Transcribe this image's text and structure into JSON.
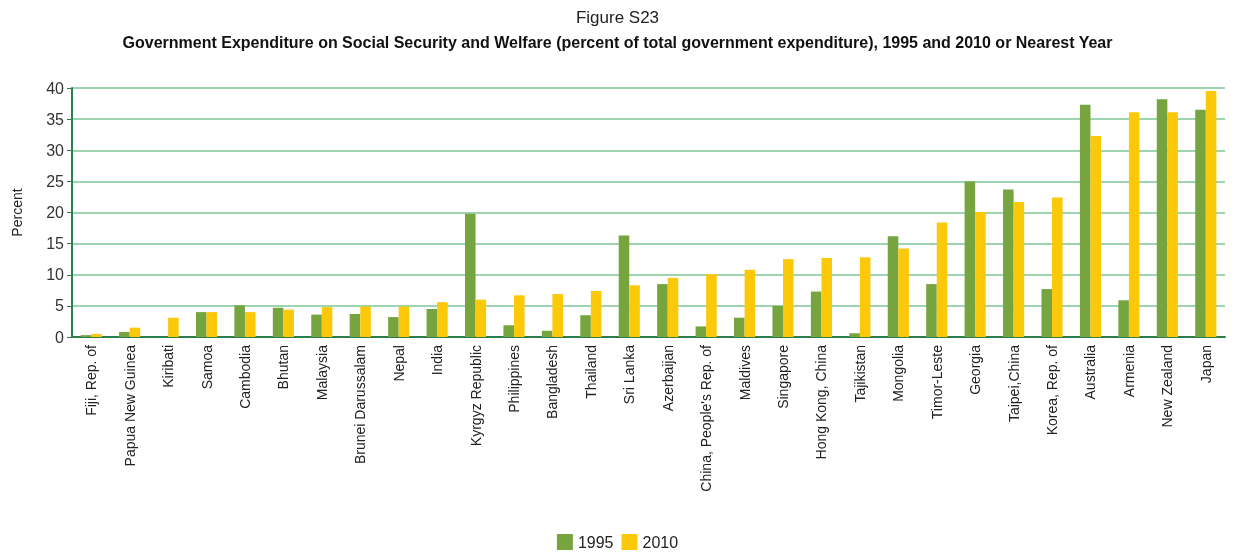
{
  "chart_data": {
    "type": "bar",
    "title": "Figure S23",
    "subtitle": "Government Expenditure on Social Security and Welfare (percent of total government expenditure), 1995 and 2010 or Nearest Year",
    "ylabel": "Percent",
    "categories": [
      "Fiji, Rep. of",
      "Papua New Guinea",
      "Kiribati",
      "Samoa",
      "Cambodia",
      "Bhutan",
      "Malaysia",
      "Brunei Darussalam",
      "Nepal",
      "India",
      "Kyrgyz Republic",
      "Philippines",
      "Bangladesh",
      "Thailand",
      "Sri Lanka",
      "Azerbaijan",
      "China, People's Rep. of",
      "Maldives",
      "Singapore",
      "Hong Kong, China",
      "Tajikistan",
      "Mongolia",
      "Timor-Leste",
      "Georgia",
      "Taipei,China",
      "Korea, Rep. of",
      "Australia",
      "Armenia",
      "New Zealand",
      "Japan"
    ],
    "series": [
      {
        "name": "1995",
        "color": "#76a540",
        "values": [
          0.3,
          0.8,
          null,
          4.0,
          5.1,
          4.7,
          3.6,
          3.7,
          3.2,
          4.5,
          19.8,
          1.9,
          1.0,
          3.5,
          16.3,
          8.5,
          1.7,
          3.1,
          5.0,
          7.3,
          0.6,
          16.2,
          8.5,
          25.0,
          23.7,
          7.7,
          37.3,
          5.9,
          38.2,
          36.5
        ]
      },
      {
        "name": "2010",
        "color": "#fcc80a",
        "values": [
          0.5,
          1.5,
          3.1,
          4.0,
          4.0,
          4.4,
          4.8,
          4.9,
          4.9,
          5.6,
          6.0,
          6.7,
          6.9,
          7.4,
          8.3,
          9.5,
          10.1,
          10.8,
          12.5,
          12.7,
          12.8,
          14.2,
          18.4,
          20.1,
          21.7,
          22.4,
          32.3,
          36.1,
          36.1,
          39.5
        ]
      }
    ],
    "ylim": [
      0,
      40
    ],
    "yticks": [
      0,
      5,
      10,
      15,
      20,
      25,
      30,
      35,
      40
    ],
    "grid": "y",
    "legend": "bottom"
  }
}
